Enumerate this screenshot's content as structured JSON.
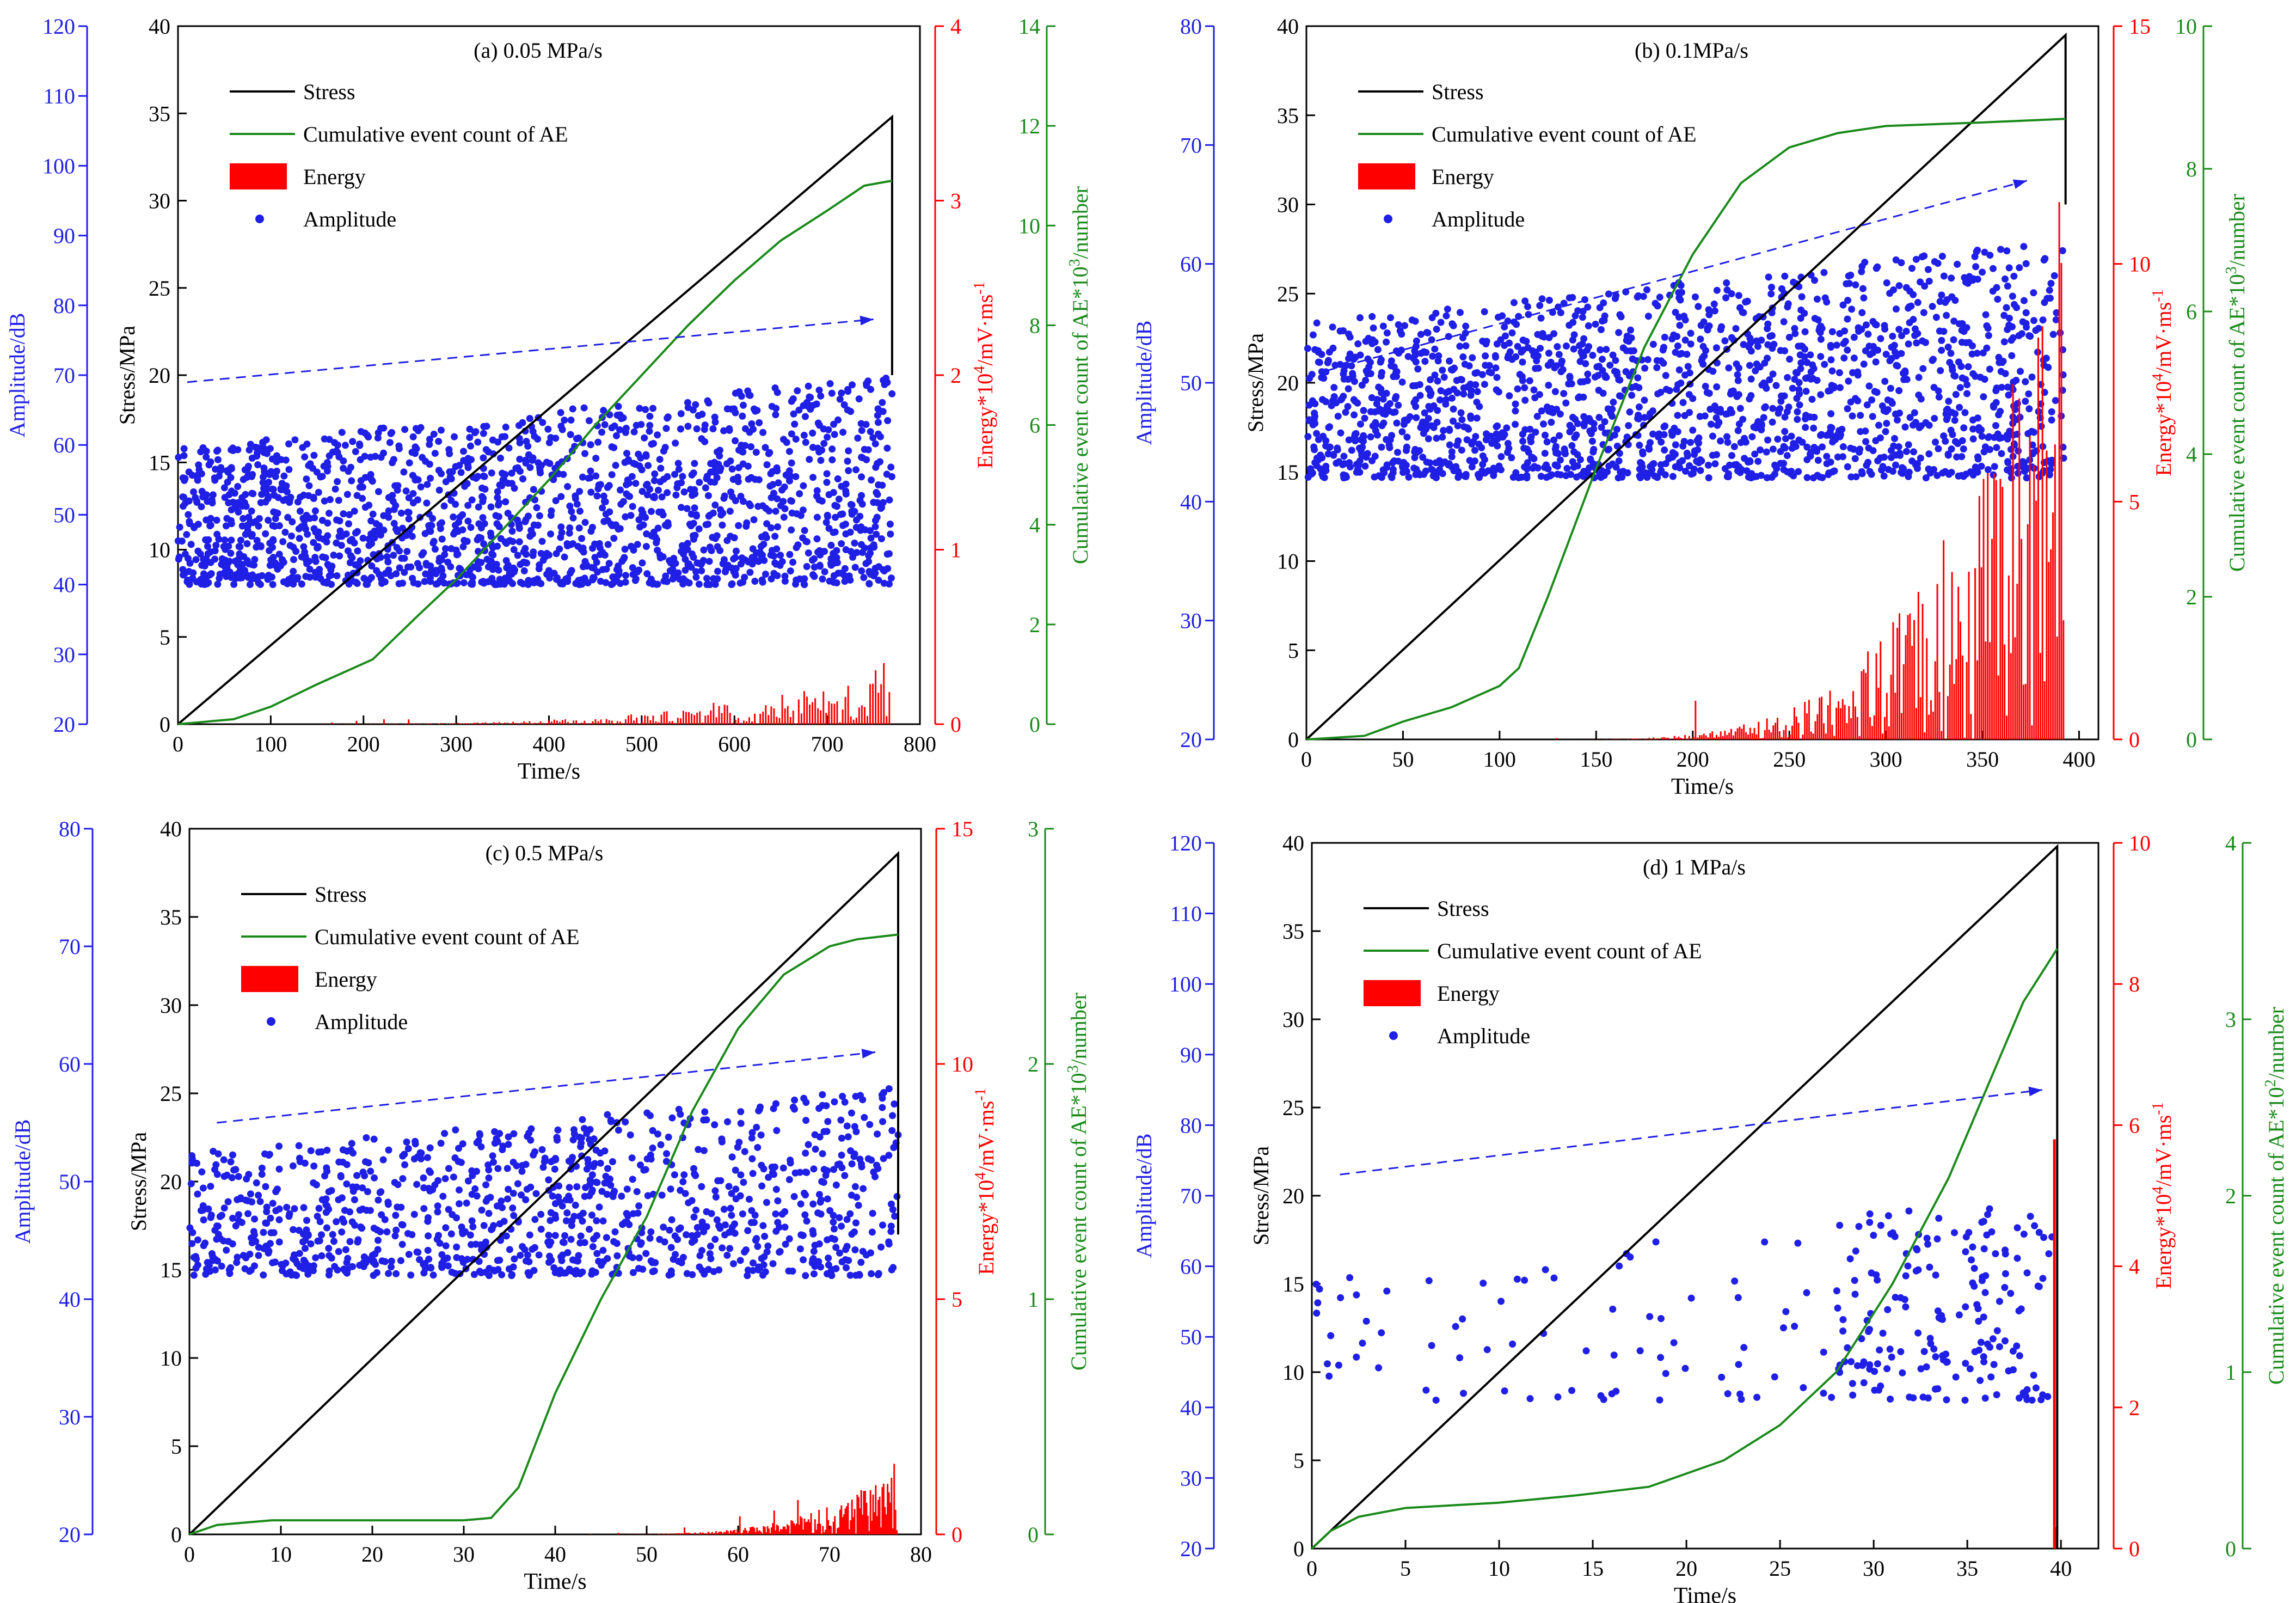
{
  "colors": {
    "stress": "#000000",
    "ae": "#1a8a1a",
    "energy": "#ff0000",
    "amplitude": "#1f1fe6",
    "trend": "#1f1fe6"
  },
  "legend_labels": {
    "stress": "Stress",
    "ae": "Cumulative event count of AE",
    "energy": "Energy",
    "amplitude": "Amplitude"
  },
  "chart_data": [
    {
      "type": "scatter",
      "title": "(a) 0.05 MPa/s",
      "xlabel": "Time/s",
      "stress_axis": {
        "label": "Stress/MPa",
        "ticks": [
          "0",
          "5",
          "10",
          "15",
          "20",
          "25",
          "30",
          "35",
          "40"
        ],
        "max": 40
      },
      "amplitude_axis": {
        "label": "Amplitude/dB",
        "ticks": [
          "20",
          "30",
          "40",
          "50",
          "60",
          "70",
          "80",
          "90",
          "100",
          "110",
          "120"
        ],
        "min": 20,
        "max": 120
      },
      "energy_axis": {
        "label": "Energy*10^4/mV·ms^-1",
        "sup": "4",
        "ticks": [
          "0",
          "1",
          "2",
          "3",
          "4"
        ],
        "max": 4
      },
      "ae_axis": {
        "label": "Cumulative event count of AE*10^3/number",
        "sup": "3",
        "ticks": [
          "0",
          "2",
          "4",
          "6",
          "8",
          "10",
          "12",
          "14"
        ],
        "max": 14
      },
      "x_ticks": [
        "0",
        "100",
        "200",
        "300",
        "400",
        "500",
        "600",
        "700",
        "800"
      ],
      "xmax": 800,
      "series": [
        {
          "name": "Stress",
          "x": [
            0,
            770,
            770
          ],
          "y": [
            0,
            34.8,
            20
          ]
        },
        {
          "name": "Cumulative event count of AE",
          "x": [
            0,
            60,
            100,
            150,
            210,
            260,
            300,
            350,
            400,
            450,
            500,
            550,
            600,
            650,
            700,
            740,
            770
          ],
          "y": [
            0,
            0.1,
            0.35,
            0.8,
            1.3,
            2.2,
            2.9,
            3.9,
            4.9,
            6.0,
            7.0,
            8.0,
            8.9,
            9.7,
            10.3,
            10.8,
            10.9
          ]
        },
        {
          "name": "Energy",
          "x_range": [
            0,
            770
          ],
          "peak": 0.35
        },
        {
          "name": "Amplitude",
          "x_range": [
            0,
            770
          ],
          "y_range": [
            40,
            70
          ]
        }
      ],
      "trend": {
        "x": [
          10,
          750
        ],
        "y": [
          69,
          78
        ]
      }
    },
    {
      "type": "scatter",
      "title": "(b) 0.1MPa/s",
      "xlabel": "Time/s",
      "stress_axis": {
        "label": "Stress/MPa",
        "ticks": [
          "0",
          "5",
          "10",
          "15",
          "20",
          "25",
          "30",
          "35",
          "40"
        ],
        "max": 40
      },
      "amplitude_axis": {
        "label": "Amplitude/dB",
        "ticks": [
          "20",
          "30",
          "40",
          "50",
          "60",
          "70",
          "80"
        ],
        "min": 20,
        "max": 80
      },
      "energy_axis": {
        "label": "Energy*10^4/mV·ms^-1",
        "sup": "4",
        "ticks": [
          "0",
          "5",
          "10",
          "15"
        ],
        "max": 15
      },
      "ae_axis": {
        "label": "Cumulative event count of AE*10^3/number",
        "sup": "3",
        "ticks": [
          "0",
          "2",
          "4",
          "6",
          "8",
          "10"
        ],
        "max": 10
      },
      "x_ticks": [
        "0",
        "50",
        "100",
        "150",
        "200",
        "250",
        "300",
        "350",
        "400"
      ],
      "xmax": 410,
      "series": [
        {
          "name": "Stress",
          "x": [
            0,
            393,
            393
          ],
          "y": [
            0,
            39.5,
            30
          ]
        },
        {
          "name": "Cumulative event count of AE",
          "x": [
            0,
            30,
            50,
            75,
            100,
            110,
            125,
            150,
            175,
            200,
            225,
            250,
            275,
            300,
            350,
            393
          ],
          "y": [
            0,
            0.05,
            0.25,
            0.45,
            0.75,
            1.0,
            2.0,
            3.8,
            5.5,
            6.8,
            7.8,
            8.3,
            8.5,
            8.6,
            8.65,
            8.7
          ]
        },
        {
          "name": "Energy",
          "x_range": [
            110,
            393
          ],
          "peak": 11.3
        },
        {
          "name": "Amplitude",
          "x_range": [
            0,
            393
          ],
          "y_range": [
            42,
            62
          ]
        }
      ],
      "trend": {
        "x": [
          10,
          373
        ],
        "y": [
          51,
          67
        ]
      }
    },
    {
      "type": "scatter",
      "title": "(c) 0.5 MPa/s",
      "xlabel": "Time/s",
      "stress_axis": {
        "label": "Stress/MPa",
        "ticks": [
          "0",
          "5",
          "10",
          "15",
          "20",
          "25",
          "30",
          "35",
          "40"
        ],
        "max": 40
      },
      "amplitude_axis": {
        "label": "Amplitude/dB",
        "ticks": [
          "20",
          "30",
          "40",
          "50",
          "60",
          "70",
          "80"
        ],
        "min": 20,
        "max": 80
      },
      "energy_axis": {
        "label": "Energy*10^4/mV·ms^-1",
        "sup": "4",
        "ticks": [
          "0",
          "5",
          "10",
          "15"
        ],
        "max": 15
      },
      "ae_axis": {
        "label": "Cumulative event count of AE*10^3/number",
        "sup": "3",
        "ticks": [
          "0",
          "1",
          "2",
          "3"
        ],
        "max": 3
      },
      "x_ticks": [
        "0",
        "10",
        "20",
        "30",
        "40",
        "50",
        "60",
        "70",
        "80"
      ],
      "xmax": 80,
      "series": [
        {
          "name": "Stress",
          "x": [
            0,
            77.5,
            77.5
          ],
          "y": [
            0,
            38.6,
            17
          ]
        },
        {
          "name": "Cumulative event count of AE",
          "x": [
            0,
            3,
            9,
            20,
            30,
            33,
            36,
            40,
            45,
            50,
            55,
            60,
            65,
            70,
            73,
            77.5
          ],
          "y": [
            0,
            0.04,
            0.06,
            0.06,
            0.06,
            0.07,
            0.2,
            0.6,
            1.0,
            1.35,
            1.8,
            2.15,
            2.38,
            2.5,
            2.53,
            2.55
          ]
        },
        {
          "name": "Energy",
          "x_range": [
            40,
            77.5
          ],
          "peak": 1.5
        },
        {
          "name": "Amplitude",
          "x_range": [
            0,
            77.5
          ],
          "y_range": [
            42,
            58
          ]
        }
      ],
      "trend": {
        "x": [
          3,
          75
        ],
        "y": [
          55,
          61
        ]
      }
    },
    {
      "type": "scatter",
      "title": "(d) 1 MPa/s",
      "xlabel": "Time/s",
      "stress_axis": {
        "label": "Stress/MPa",
        "ticks": [
          "0",
          "5",
          "10",
          "15",
          "20",
          "25",
          "30",
          "35",
          "40"
        ],
        "max": 40
      },
      "amplitude_axis": {
        "label": "Amplitude/dB",
        "ticks": [
          "20",
          "30",
          "40",
          "50",
          "60",
          "70",
          "80",
          "90",
          "100",
          "110",
          "120"
        ],
        "min": 20,
        "max": 120
      },
      "energy_axis": {
        "label": "Energy*10^4/mV·ms^-1",
        "sup": "4",
        "ticks": [
          "0",
          "2",
          "4",
          "6",
          "8",
          "10"
        ],
        "max": 10
      },
      "ae_axis": {
        "label": "Cumulative event count of AE*10^2/number",
        "sup": "2",
        "ticks": [
          "0",
          "1",
          "2",
          "3",
          "4"
        ],
        "max": 4
      },
      "x_ticks": [
        "0",
        "5",
        "10",
        "15",
        "20",
        "25",
        "30",
        "35",
        "40"
      ],
      "xmax": 42,
      "series": [
        {
          "name": "Stress",
          "x": [
            0,
            39.8,
            39.8
          ],
          "y": [
            0,
            39.8,
            0
          ]
        },
        {
          "name": "Cumulative event count of AE",
          "x": [
            0,
            1,
            2.5,
            5,
            10,
            14,
            18,
            22,
            25,
            28,
            31,
            34,
            36,
            38,
            39.8
          ],
          "y": [
            0,
            0.1,
            0.18,
            0.23,
            0.26,
            0.3,
            0.35,
            0.5,
            0.7,
            1.0,
            1.5,
            2.1,
            2.6,
            3.1,
            3.4
          ]
        },
        {
          "name": "Energy",
          "x_range": [
            39.6,
            39.8
          ],
          "peak": 5.8
        },
        {
          "name": "Amplitude",
          "x_range": [
            0,
            39.8
          ],
          "y_range": [
            41,
            70
          ]
        }
      ],
      "trend": {
        "x": [
          1.5,
          39
        ],
        "y": [
          73,
          85
        ]
      }
    }
  ]
}
